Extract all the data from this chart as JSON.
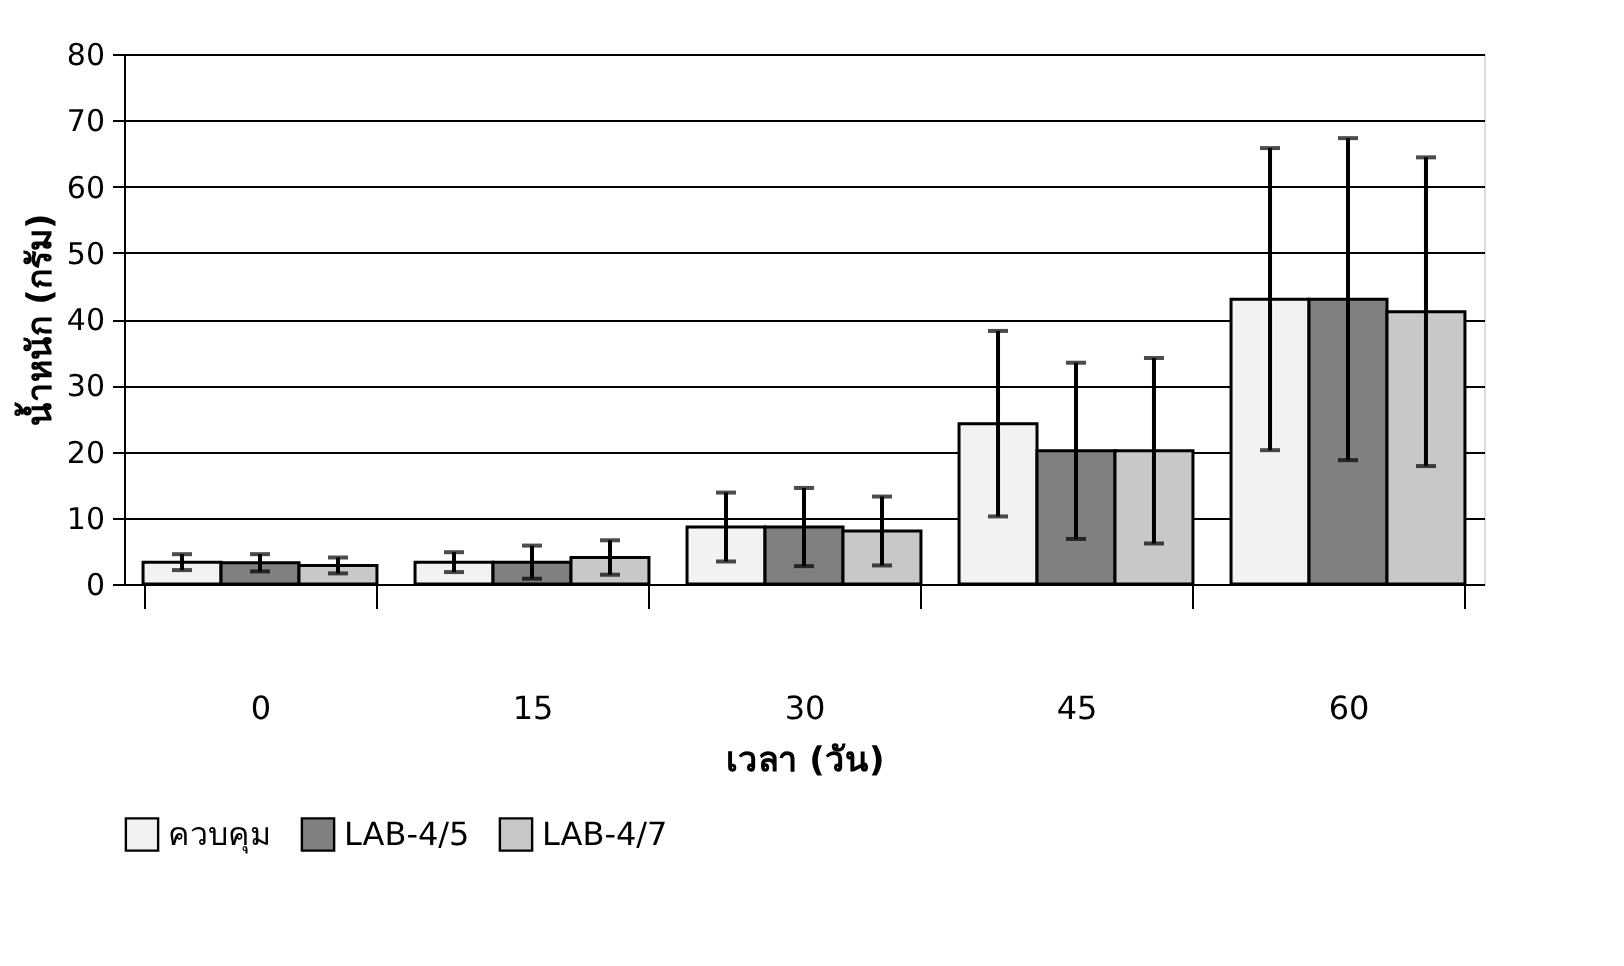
{
  "chart_data": {
    "type": "bar",
    "xlabel": "เวลา (วัน)",
    "ylabel": "น้ำหนัก (กรัม)",
    "categories": [
      "0",
      "15",
      "30",
      "45",
      "60"
    ],
    "series": [
      {
        "name": "ควบคุม",
        "color": "#f2f2f2",
        "values": [
          3.3,
          3.3,
          8.6,
          24.2,
          43.0
        ],
        "errors": [
          1.2,
          1.5,
          5.2,
          14.0,
          22.8
        ]
      },
      {
        "name": "LAB-4/5",
        "color": "#808080",
        "values": [
          3.2,
          3.3,
          8.6,
          20.1,
          43.0
        ],
        "errors": [
          1.3,
          2.5,
          5.9,
          13.3,
          24.3
        ]
      },
      {
        "name": "LAB-4/7",
        "color": "#c8c8c8",
        "values": [
          2.8,
          4.0,
          8.0,
          20.1,
          41.1
        ],
        "errors": [
          1.2,
          2.6,
          5.2,
          14.0,
          23.3
        ]
      }
    ],
    "ylim": [
      0,
      80
    ],
    "yticks": [
      0,
      10,
      20,
      30,
      40,
      50,
      60,
      70,
      80
    ],
    "grid": "y",
    "legend": "bottom"
  }
}
